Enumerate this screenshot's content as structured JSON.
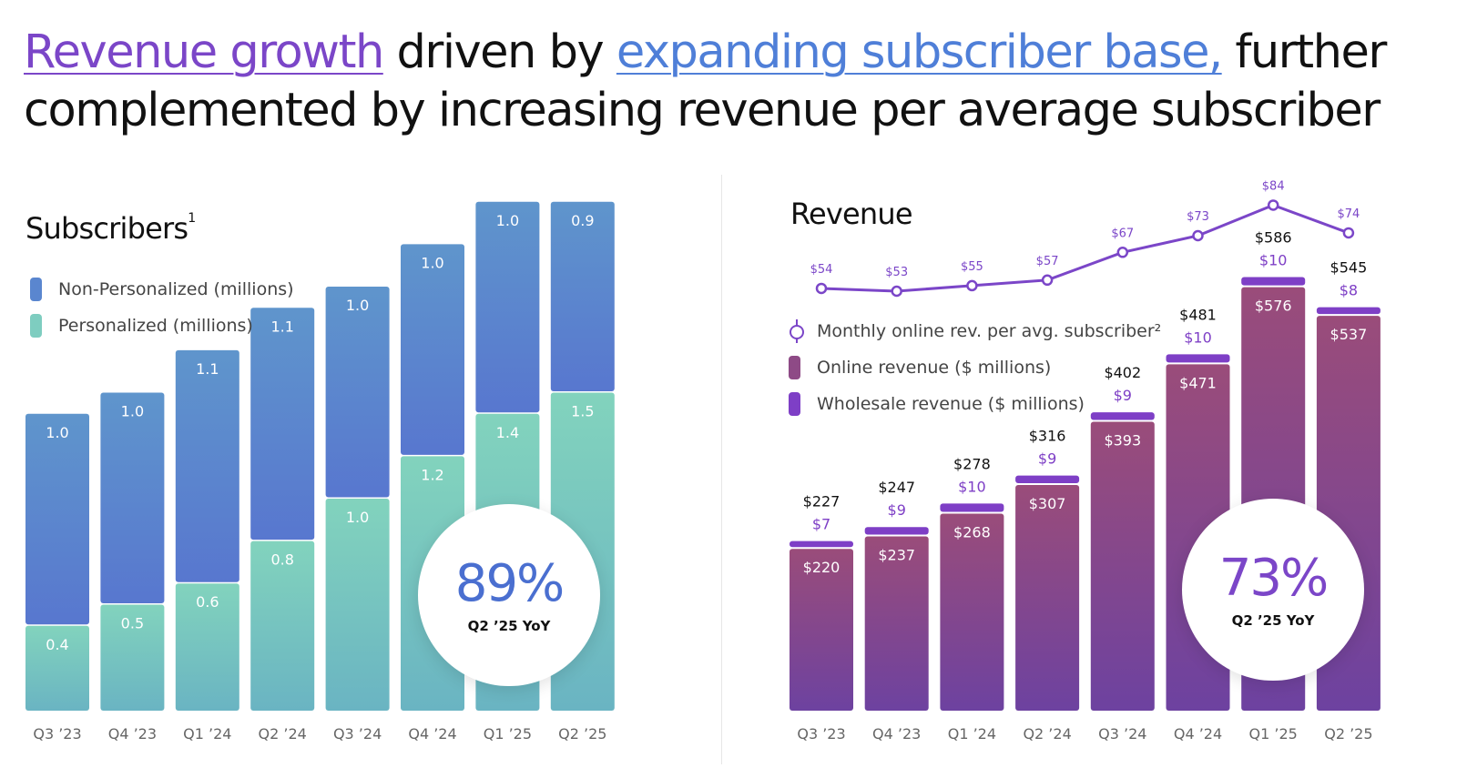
{
  "headline": {
    "part1": "Revenue growth",
    "part2": " driven by ",
    "part3": "expanding subscriber base,",
    "part4": " further",
    "line2": "complemented by increasing revenue per average subscriber"
  },
  "colors": {
    "accent_purple": "#7b46c8",
    "accent_blue": "#4f7fd8",
    "non_personalized": "#5a86cf",
    "personalized": "#7ecdc0",
    "online_revenue": "#8e4a86",
    "wholesale_revenue": "#7e3fc6"
  },
  "subscribers": {
    "title": "Subscribers",
    "footnote": "1",
    "legend": [
      "Non-Personalized (millions)",
      "Personalized (millions)"
    ],
    "badge": {
      "value": "89%",
      "label": "Q2 ’25 YoY"
    }
  },
  "revenue": {
    "title": "Revenue",
    "legend": [
      "Monthly online rev. per avg. subscriber²",
      "Online revenue ($ millions)",
      "Wholesale revenue ($ millions)"
    ],
    "badge": {
      "value": "73%",
      "label": "Q2 ’25 YoY"
    }
  },
  "chart_data": [
    {
      "type": "bar",
      "stacked": true,
      "title": "Subscribers",
      "categories": [
        "Q3 ’23",
        "Q4 ’23",
        "Q1 ’24",
        "Q2 ’24",
        "Q3 ’24",
        "Q4 ’24",
        "Q1 ’25",
        "Q2 ’25"
      ],
      "series": [
        {
          "name": "Personalized (millions)",
          "values": [
            0.4,
            0.5,
            0.6,
            0.8,
            1.0,
            1.2,
            1.4,
            1.5
          ],
          "labels": [
            "0.4",
            "0.5",
            "0.6",
            "0.8",
            "1.0",
            "1.2",
            "1.4",
            "1.5"
          ],
          "color": "#7ecdc0"
        },
        {
          "name": "Non-Personalized (millions)",
          "values": [
            1.0,
            1.0,
            1.1,
            1.1,
            1.0,
            1.0,
            1.0,
            0.9
          ],
          "labels": [
            "1.0",
            "1.0",
            "1.1",
            "1.1",
            "1.0",
            "1.0",
            "1.0",
            "0.9"
          ],
          "color": "#5a86cf"
        }
      ],
      "legend_position": "top-left",
      "grid": false
    },
    {
      "type": "bar",
      "stacked": true,
      "title": "Revenue",
      "categories": [
        "Q3 ’23",
        "Q4 ’23",
        "Q1 ’24",
        "Q2 ’24",
        "Q3 ’24",
        "Q4 ’24",
        "Q1 ’25",
        "Q2 ’25"
      ],
      "series": [
        {
          "name": "Online revenue ($ millions)",
          "values": [
            220,
            237,
            268,
            307,
            393,
            471,
            576,
            537
          ],
          "labels": [
            "$220",
            "$237",
            "$268",
            "$307",
            "$393",
            "$471",
            "$576",
            "$537"
          ],
          "color": "#8e4a86"
        },
        {
          "name": "Wholesale revenue ($ millions)",
          "values": [
            7,
            9,
            10,
            9,
            9,
            10,
            10,
            8
          ],
          "labels": [
            "$7",
            "$9",
            "$10",
            "$9",
            "$9",
            "$10",
            "$10",
            "$8"
          ],
          "color": "#7e3fc6"
        }
      ],
      "totals": [
        "$227",
        "$247",
        "$278",
        "$316",
        "$402",
        "$481",
        "$586",
        "$545"
      ],
      "line": {
        "name": "Monthly online rev. per avg. subscriber²",
        "values": [
          54,
          53,
          55,
          57,
          67,
          73,
          84,
          74
        ],
        "labels": [
          "$54",
          "$53",
          "$55",
          "$57",
          "$67",
          "$73",
          "$84",
          "$74"
        ],
        "color": "#7b46c8"
      },
      "legend_position": "left",
      "grid": false
    }
  ]
}
